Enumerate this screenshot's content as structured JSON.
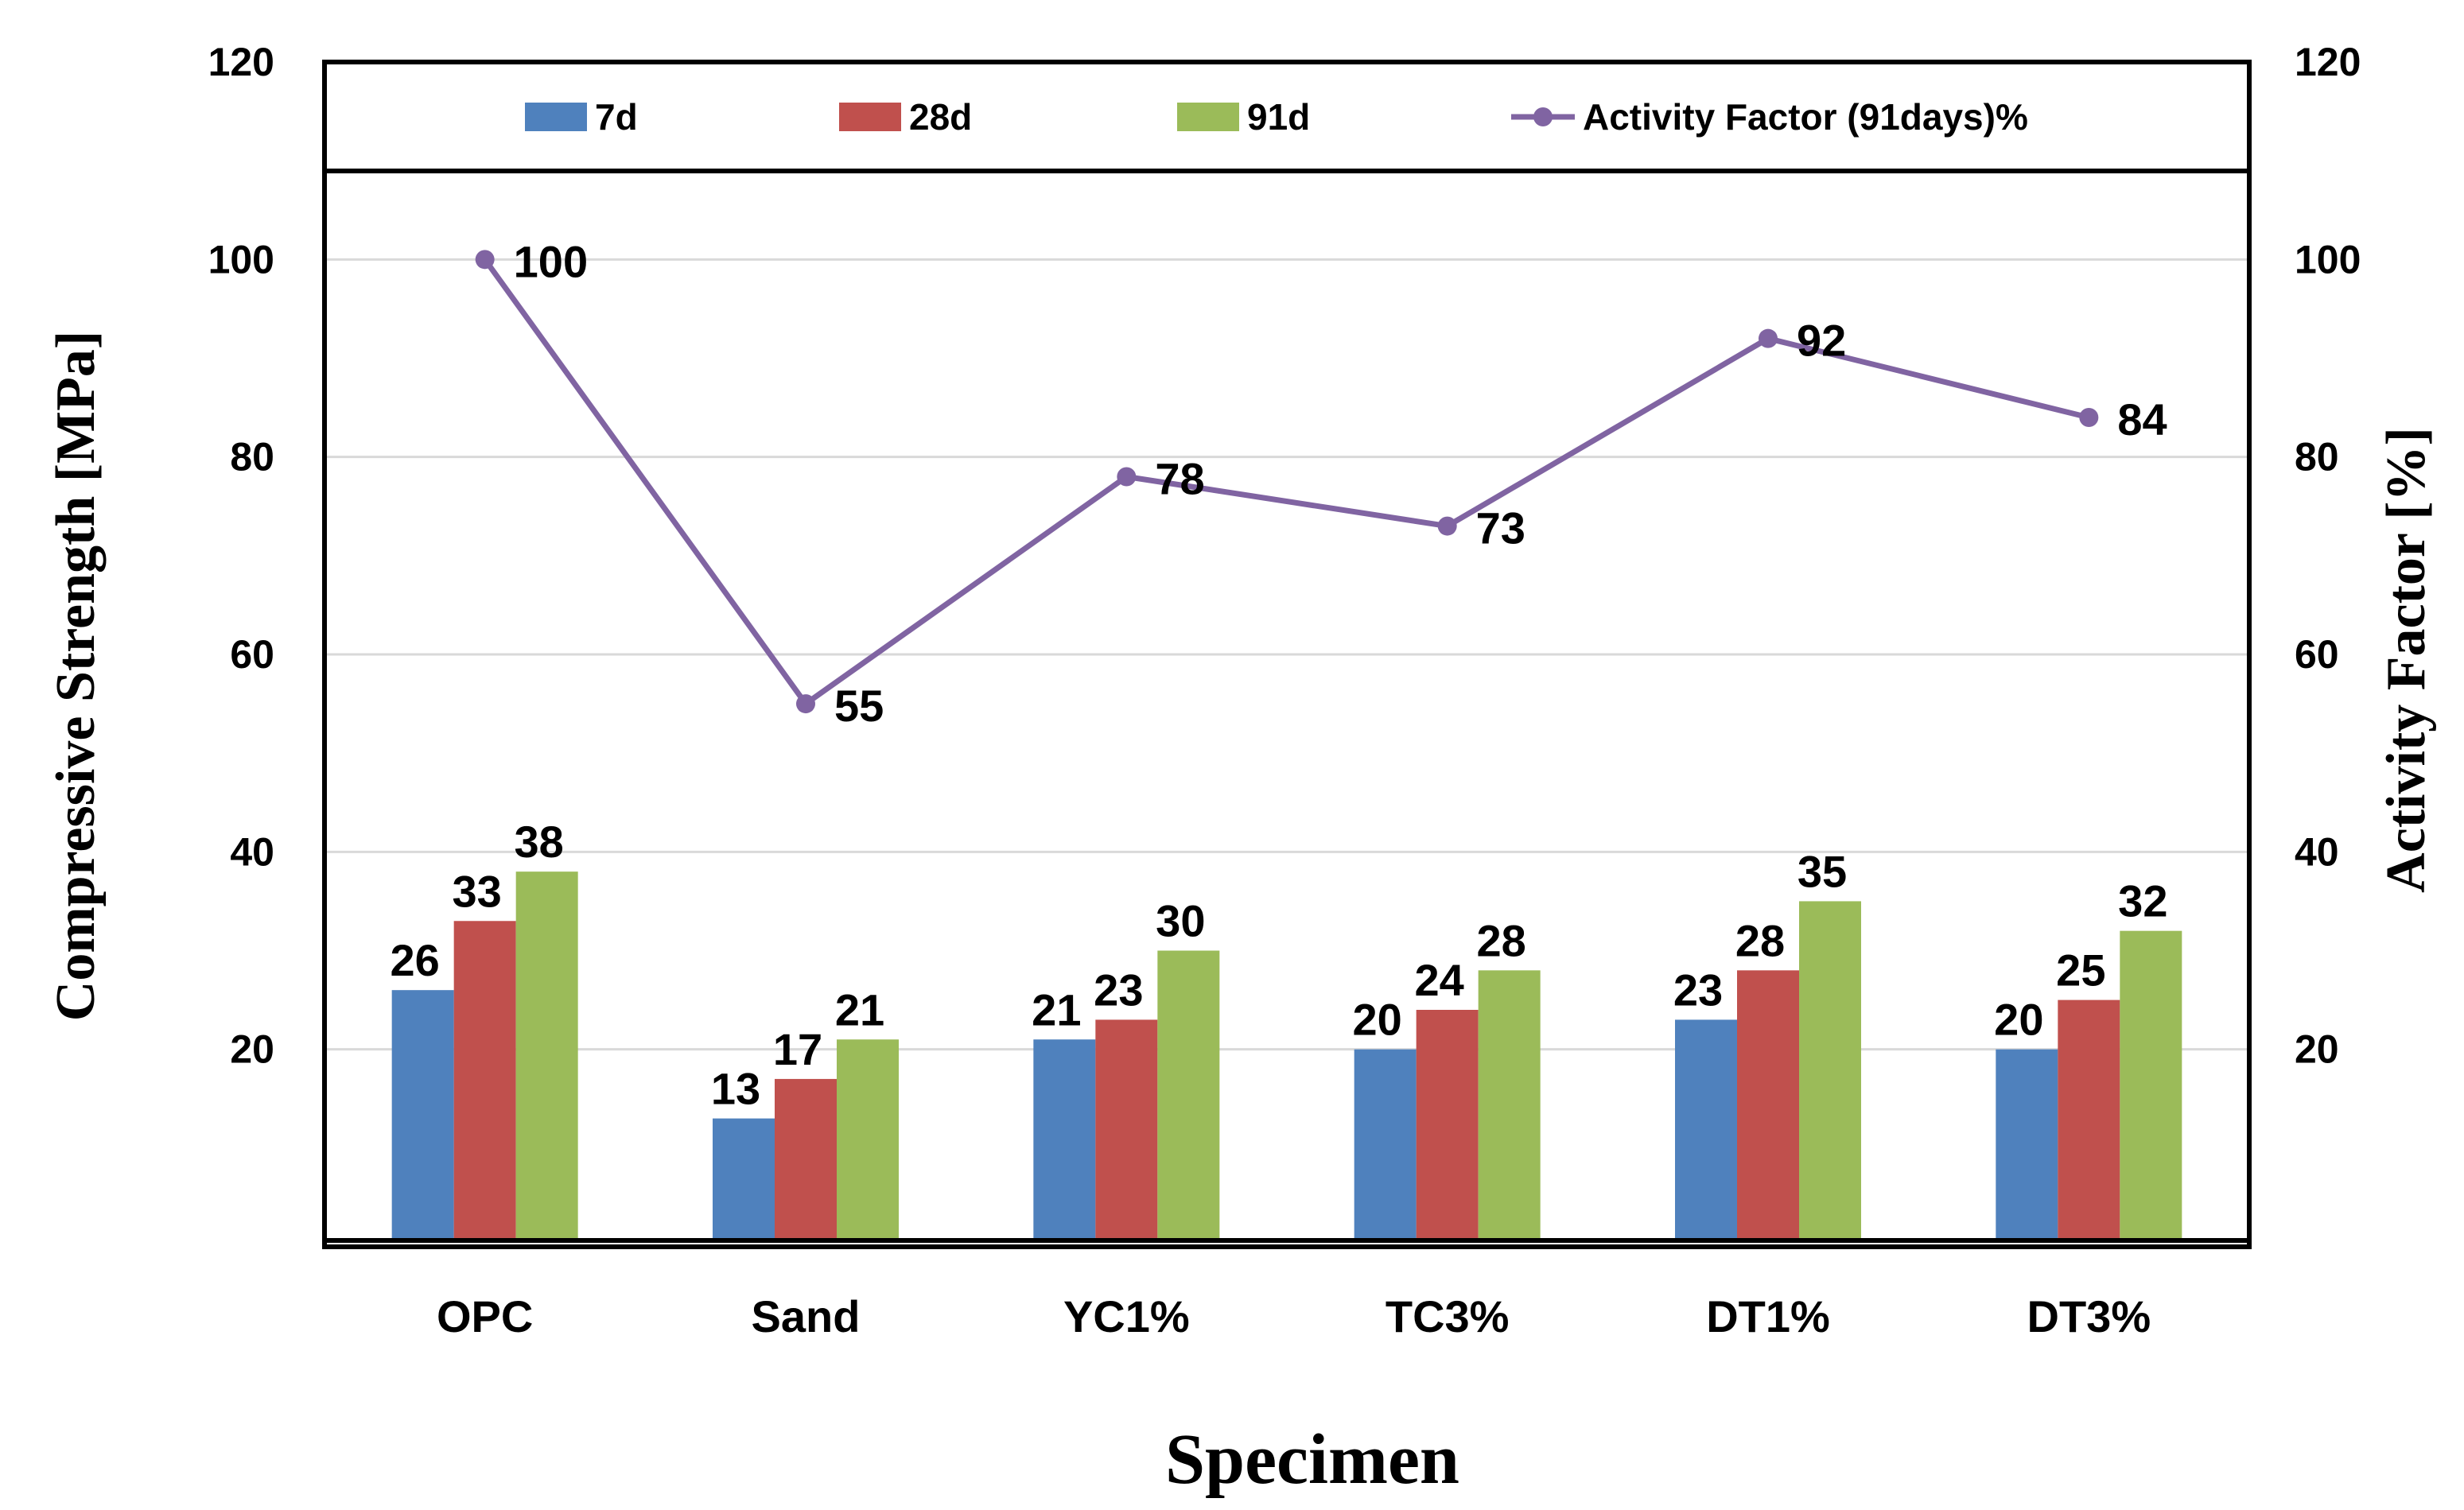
{
  "chart_data": {
    "type": "bar",
    "categories": [
      "OPC",
      "Sand",
      "YC1%",
      "TC3%",
      "DT1%",
      "DT3%"
    ],
    "series": [
      {
        "name": "7d",
        "type": "bar",
        "axis": "left",
        "color": "#4F81BD",
        "values": [
          26,
          13,
          21,
          20,
          23,
          20
        ]
      },
      {
        "name": "28d",
        "type": "bar",
        "axis": "left",
        "color": "#C0504D",
        "values": [
          33,
          17,
          23,
          24,
          28,
          25
        ]
      },
      {
        "name": "91d",
        "type": "bar",
        "axis": "left",
        "color": "#9BBB59",
        "values": [
          38,
          21,
          30,
          28,
          35,
          32
        ]
      },
      {
        "name": "Activity Factor (91days)%",
        "type": "line",
        "axis": "right",
        "color": "#8064A2",
        "values": [
          100,
          55,
          78,
          73,
          92,
          84
        ]
      }
    ],
    "xlabel": "Specimen",
    "ylabel": "Compressive Strength [MPa]",
    "y2label": "Activity Factor [%]",
    "ylim": [
      0,
      120
    ],
    "y2lim": [
      0,
      120
    ],
    "yticks": [
      "20",
      "40",
      "60",
      "80",
      "100",
      "120"
    ],
    "y2ticks": [
      "20",
      "40",
      "60",
      "80",
      "100",
      "120"
    ],
    "grid": true,
    "legend_position": "top"
  }
}
